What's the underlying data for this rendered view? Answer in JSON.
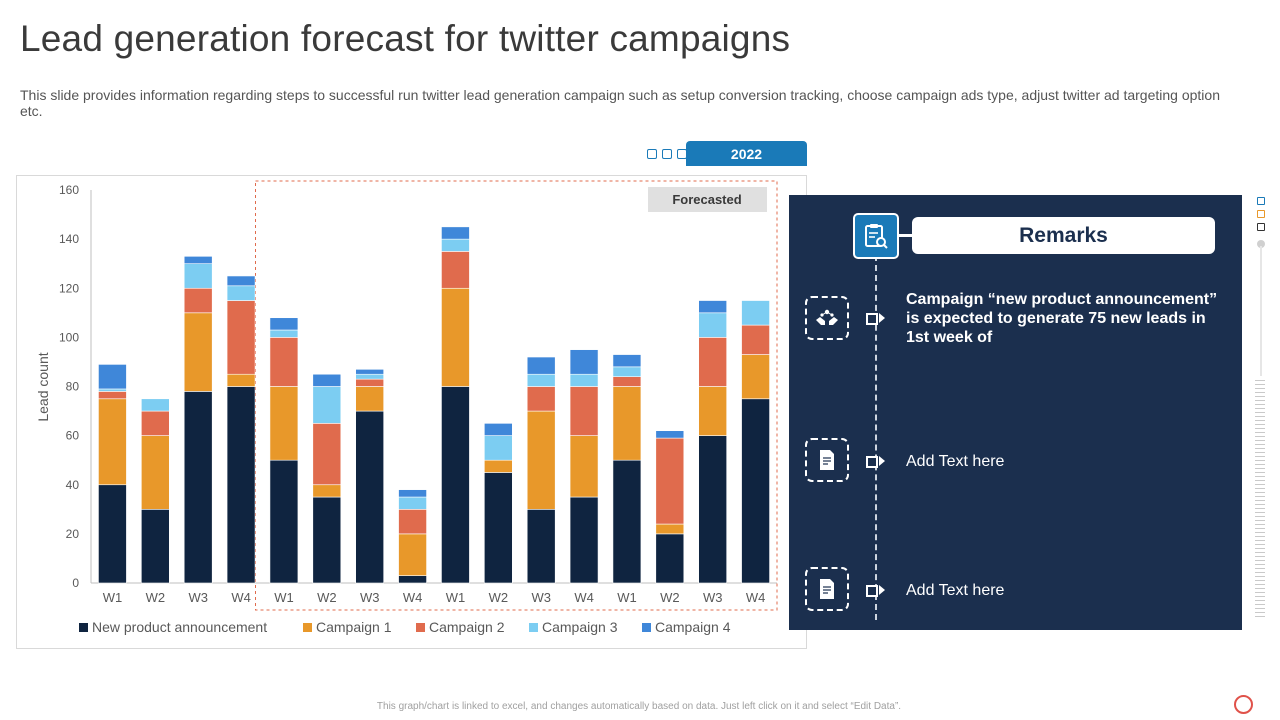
{
  "header": {
    "title": "Lead generation forecast for twitter campaigns",
    "subtitle": "This slide provides information regarding steps to successful run twitter lead generation campaign such as setup conversion tracking, choose campaign ads type, adjust twitter ad targeting option etc."
  },
  "year_tab": "2022",
  "remarks": {
    "heading": "Remarks",
    "items": [
      {
        "text": "Campaign “new product announcement” is expected to generate 75 new leads in 1st week of",
        "icon": "hands-network-icon"
      },
      {
        "text": "Add Text here",
        "icon": "document-icon"
      },
      {
        "text": "Add Text here",
        "icon": "document-icon"
      }
    ]
  },
  "footnote": "This graph/chart is linked to excel, and changes automatically based on data. Just left click on it and select “Edit Data”.",
  "colors": {
    "accent": "#1a7ab8",
    "panel": "#1b2f4e",
    "series": [
      "#0f2440",
      "#e8982a",
      "#e06b4d",
      "#7ccdf2",
      "#3f87d9"
    ]
  },
  "chart_data": {
    "type": "bar",
    "stacked": true,
    "title": "",
    "xlabel": "",
    "ylabel": "Lead count",
    "ylim": [
      0,
      160
    ],
    "yticks": [
      0,
      20,
      40,
      60,
      80,
      100,
      120,
      140,
      160
    ],
    "categories": [
      "W1",
      "W2",
      "W3",
      "W4",
      "W1",
      "W2",
      "W3",
      "W4",
      "W1",
      "W2",
      "W3",
      "W4",
      "W1",
      "W2",
      "W3",
      "W4"
    ],
    "forecast_label": "Forecasted",
    "forecast_start_index": 4,
    "legend_position": "bottom",
    "series": [
      {
        "name": "New product announcement",
        "values": [
          40,
          30,
          78,
          80,
          50,
          35,
          70,
          3,
          80,
          45,
          30,
          35,
          50,
          20,
          60,
          75
        ]
      },
      {
        "name": "Campaign 1",
        "values": [
          35,
          30,
          32,
          5,
          30,
          5,
          10,
          17,
          40,
          5,
          40,
          25,
          30,
          4,
          20,
          18
        ]
      },
      {
        "name": "Campaign 2",
        "values": [
          3,
          10,
          10,
          30,
          20,
          25,
          3,
          10,
          15,
          0,
          10,
          20,
          4,
          35,
          20,
          12
        ]
      },
      {
        "name": "Campaign 3",
        "values": [
          1,
          5,
          10,
          6,
          3,
          15,
          2,
          5,
          5,
          10,
          5,
          5,
          4,
          0,
          10,
          10
        ]
      },
      {
        "name": "Campaign 4",
        "values": [
          10,
          0,
          3,
          4,
          5,
          5,
          2,
          3,
          5,
          5,
          7,
          10,
          5,
          3,
          5,
          0
        ]
      }
    ]
  }
}
